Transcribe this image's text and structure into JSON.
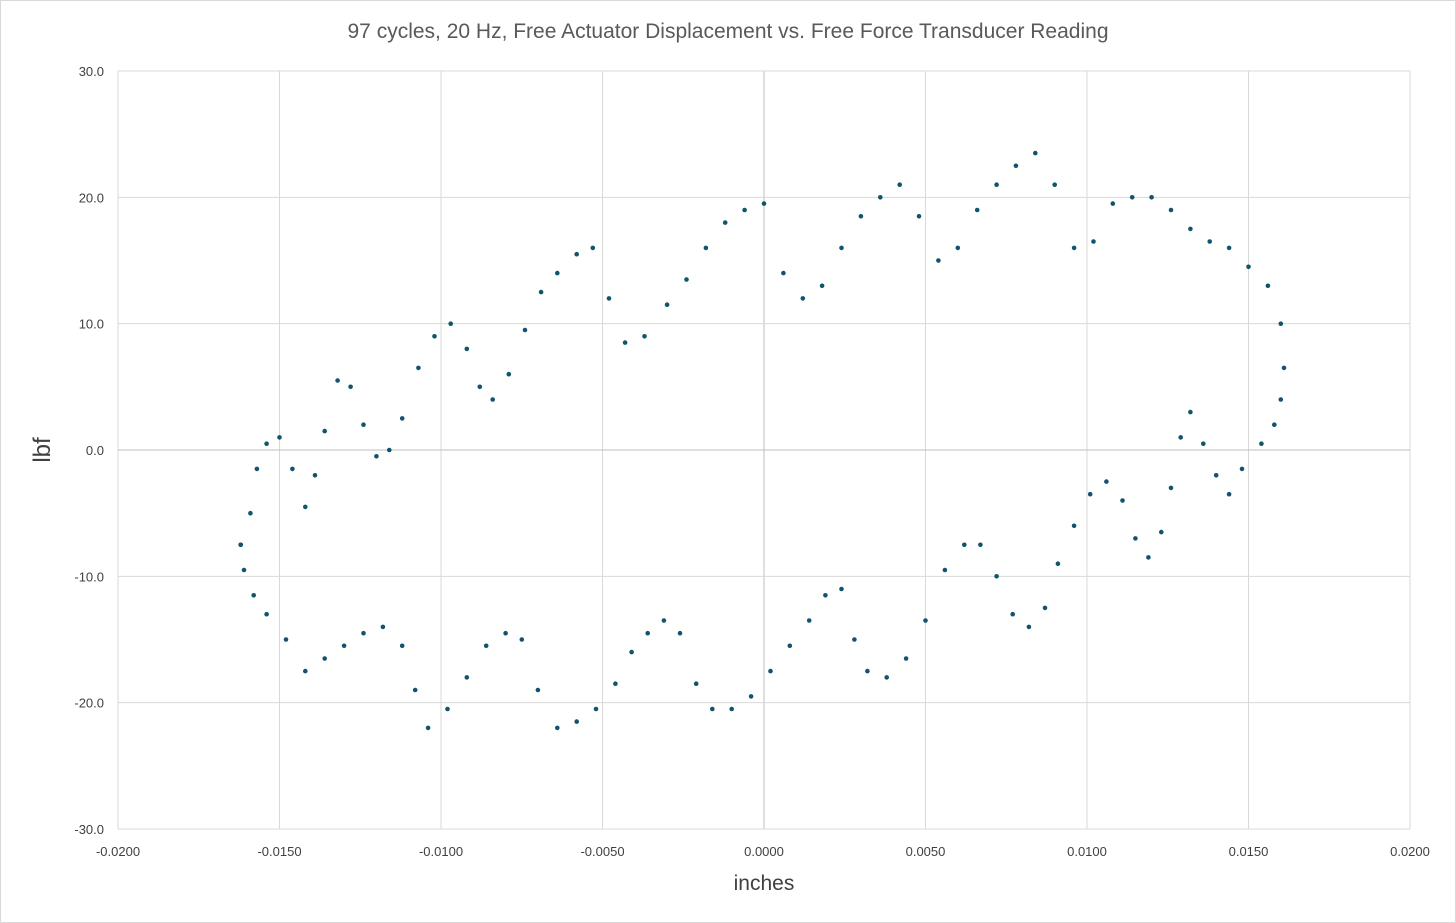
{
  "chart_data": {
    "type": "scatter",
    "title": "97 cycles, 20 Hz, Free Actuator Displacement vs. Free Force Transducer Reading",
    "xlabel": "inches",
    "ylabel": "lbf",
    "xlim": [
      -0.02,
      0.02
    ],
    "ylim": [
      -30,
      30
    ],
    "x_ticks": [
      "-0.0200",
      "-0.0150",
      "-0.0100",
      "-0.0050",
      "0.0000",
      "0.0050",
      "0.0100",
      "0.0150",
      "0.0200"
    ],
    "y_ticks": [
      "30.0",
      "20.0",
      "10.0",
      "0.0",
      "-10.0",
      "-20.0",
      "-30.0"
    ],
    "grid": true,
    "marker_color": "#11546e",
    "series": [
      {
        "points": [
          [
            -0.0162,
            -7.5
          ],
          [
            -0.0159,
            -5.0
          ],
          [
            -0.0157,
            -1.5
          ],
          [
            -0.0154,
            0.5
          ],
          [
            -0.015,
            1.0
          ],
          [
            -0.0146,
            -1.5
          ],
          [
            -0.0142,
            -4.5
          ],
          [
            -0.0139,
            -2.0
          ],
          [
            -0.0136,
            1.5
          ],
          [
            -0.0132,
            5.5
          ],
          [
            -0.0128,
            5.0
          ],
          [
            -0.0124,
            2.0
          ],
          [
            -0.012,
            -0.5
          ],
          [
            -0.0116,
            0.0
          ],
          [
            -0.0112,
            2.5
          ],
          [
            -0.0107,
            6.5
          ],
          [
            -0.0102,
            9.0
          ],
          [
            -0.0097,
            10.0
          ],
          [
            -0.0092,
            8.0
          ],
          [
            -0.0088,
            5.0
          ],
          [
            -0.0084,
            4.0
          ],
          [
            -0.0079,
            6.0
          ],
          [
            -0.0074,
            9.5
          ],
          [
            -0.0069,
            12.5
          ],
          [
            -0.0064,
            14.0
          ],
          [
            -0.0058,
            15.5
          ],
          [
            -0.0053,
            16.0
          ],
          [
            -0.0048,
            12.0
          ],
          [
            -0.0043,
            8.5
          ],
          [
            -0.0037,
            9.0
          ],
          [
            -0.003,
            11.5
          ],
          [
            -0.0024,
            13.5
          ],
          [
            -0.0018,
            16.0
          ],
          [
            -0.0012,
            18.0
          ],
          [
            -0.0006,
            19.0
          ],
          [
            0.0,
            19.5
          ],
          [
            0.0006,
            14.0
          ],
          [
            0.0012,
            12.0
          ],
          [
            0.0018,
            13.0
          ],
          [
            0.0024,
            16.0
          ],
          [
            0.003,
            18.5
          ],
          [
            0.0036,
            20.0
          ],
          [
            0.0042,
            21.0
          ],
          [
            0.0048,
            18.5
          ],
          [
            0.0054,
            15.0
          ],
          [
            0.006,
            16.0
          ],
          [
            0.0066,
            19.0
          ],
          [
            0.0072,
            21.0
          ],
          [
            0.0078,
            22.5
          ],
          [
            0.0084,
            23.5
          ],
          [
            0.009,
            21.0
          ],
          [
            0.0096,
            16.0
          ],
          [
            0.0102,
            16.5
          ],
          [
            0.0108,
            19.5
          ],
          [
            0.0114,
            20.0
          ],
          [
            0.012,
            20.0
          ],
          [
            0.0126,
            19.0
          ],
          [
            0.0132,
            17.5
          ],
          [
            0.0138,
            16.5
          ],
          [
            0.0144,
            16.0
          ],
          [
            0.015,
            14.5
          ],
          [
            0.0156,
            13.0
          ],
          [
            0.016,
            10.0
          ],
          [
            0.0161,
            6.5
          ],
          [
            0.016,
            4.0
          ],
          [
            0.0158,
            2.0
          ],
          [
            0.0154,
            0.5
          ],
          [
            0.0148,
            -1.5
          ],
          [
            0.0144,
            -3.5
          ],
          [
            0.014,
            -2.0
          ],
          [
            0.0136,
            0.5
          ],
          [
            0.0132,
            3.0
          ],
          [
            0.0129,
            1.0
          ],
          [
            0.0126,
            -3.0
          ],
          [
            0.0123,
            -6.5
          ],
          [
            0.0119,
            -8.5
          ],
          [
            0.0115,
            -7.0
          ],
          [
            0.0111,
            -4.0
          ],
          [
            0.0106,
            -2.5
          ],
          [
            0.0101,
            -3.5
          ],
          [
            0.0096,
            -6.0
          ],
          [
            0.0091,
            -9.0
          ],
          [
            0.0087,
            -12.5
          ],
          [
            0.0082,
            -14.0
          ],
          [
            0.0077,
            -13.0
          ],
          [
            0.0072,
            -10.0
          ],
          [
            0.0067,
            -7.5
          ],
          [
            0.0062,
            -7.5
          ],
          [
            0.0056,
            -9.5
          ],
          [
            0.005,
            -13.5
          ],
          [
            0.0044,
            -16.5
          ],
          [
            0.0038,
            -18.0
          ],
          [
            0.0032,
            -17.5
          ],
          [
            0.0028,
            -15.0
          ],
          [
            0.0024,
            -11.0
          ],
          [
            0.0019,
            -11.5
          ],
          [
            0.0014,
            -13.5
          ],
          [
            0.0008,
            -15.5
          ],
          [
            0.0002,
            -17.5
          ],
          [
            -0.0004,
            -19.5
          ],
          [
            -0.001,
            -20.5
          ],
          [
            -0.0016,
            -20.5
          ],
          [
            -0.0021,
            -18.5
          ],
          [
            -0.0026,
            -14.5
          ],
          [
            -0.0031,
            -13.5
          ],
          [
            -0.0036,
            -14.5
          ],
          [
            -0.0041,
            -16.0
          ],
          [
            -0.0046,
            -18.5
          ],
          [
            -0.0052,
            -20.5
          ],
          [
            -0.0058,
            -21.5
          ],
          [
            -0.0064,
            -22.0
          ],
          [
            -0.007,
            -19.0
          ],
          [
            -0.0075,
            -15.0
          ],
          [
            -0.008,
            -14.5
          ],
          [
            -0.0086,
            -15.5
          ],
          [
            -0.0092,
            -18.0
          ],
          [
            -0.0098,
            -20.5
          ],
          [
            -0.0104,
            -22.0
          ],
          [
            -0.0108,
            -19.0
          ],
          [
            -0.0112,
            -15.5
          ],
          [
            -0.0118,
            -14.0
          ],
          [
            -0.0124,
            -14.5
          ],
          [
            -0.013,
            -15.5
          ],
          [
            -0.0136,
            -16.5
          ],
          [
            -0.0142,
            -17.5
          ],
          [
            -0.0148,
            -15.0
          ],
          [
            -0.0154,
            -13.0
          ],
          [
            -0.0158,
            -11.5
          ],
          [
            -0.0161,
            -9.5
          ],
          [
            -0.0162,
            -7.5
          ]
        ]
      }
    ]
  }
}
